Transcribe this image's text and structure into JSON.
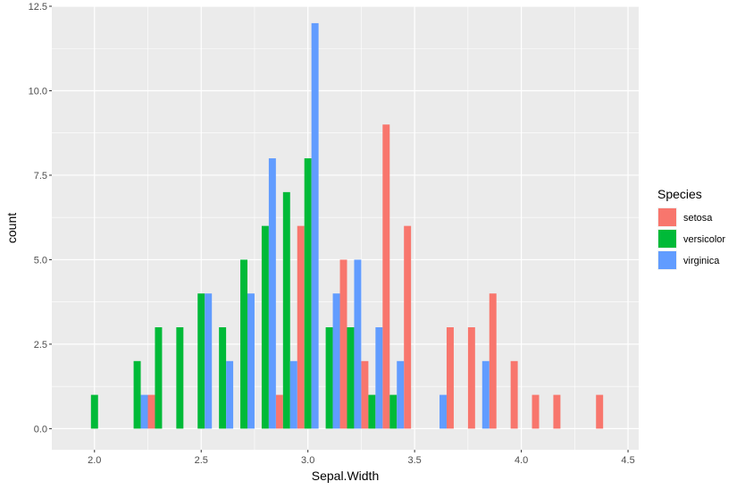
{
  "chart_data": {
    "type": "bar",
    "position": "dodge",
    "xlabel": "Sepal.Width",
    "ylabel": "count",
    "xlim": [
      1.8,
      4.55
    ],
    "ylim": [
      -0.625,
      12.5
    ],
    "xticks": [
      "2.0",
      "2.5",
      "3.0",
      "3.5",
      "4.0",
      "4.5"
    ],
    "yticks": [
      "0.0",
      "2.5",
      "5.0",
      "7.5",
      "10.0",
      "12.5"
    ],
    "grid": true,
    "legend": {
      "title": "Species",
      "placement": "right"
    },
    "series": [
      {
        "name": "setosa",
        "color": "#F8766D",
        "points": [
          [
            2.3,
            1
          ],
          [
            2.9,
            1
          ],
          [
            3.0,
            6
          ],
          [
            3.2,
            5
          ],
          [
            3.3,
            2
          ],
          [
            3.4,
            9
          ],
          [
            3.5,
            6
          ],
          [
            3.7,
            3
          ],
          [
            3.8,
            3
          ],
          [
            3.9,
            4
          ],
          [
            4.0,
            2
          ],
          [
            4.1,
            1
          ],
          [
            4.2,
            1
          ],
          [
            4.4,
            1
          ]
        ]
      },
      {
        "name": "versicolor",
        "color": "#00BA38",
        "points": [
          [
            2.0,
            1
          ],
          [
            2.2,
            2
          ],
          [
            2.3,
            3
          ],
          [
            2.4,
            3
          ],
          [
            2.5,
            4
          ],
          [
            2.6,
            3
          ],
          [
            2.7,
            5
          ],
          [
            2.8,
            6
          ],
          [
            2.9,
            7
          ],
          [
            3.0,
            8
          ],
          [
            3.1,
            3
          ],
          [
            3.2,
            3
          ],
          [
            3.3,
            1
          ],
          [
            3.4,
            1
          ]
        ]
      },
      {
        "name": "virginica",
        "color": "#619CFF",
        "points": [
          [
            2.2,
            1
          ],
          [
            2.5,
            4
          ],
          [
            2.6,
            2
          ],
          [
            2.7,
            4
          ],
          [
            2.8,
            8
          ],
          [
            2.9,
            2
          ],
          [
            3.0,
            12
          ],
          [
            3.1,
            4
          ],
          [
            3.2,
            5
          ],
          [
            3.3,
            3
          ],
          [
            3.4,
            2
          ],
          [
            3.6,
            1
          ],
          [
            3.8,
            2
          ]
        ]
      }
    ]
  }
}
